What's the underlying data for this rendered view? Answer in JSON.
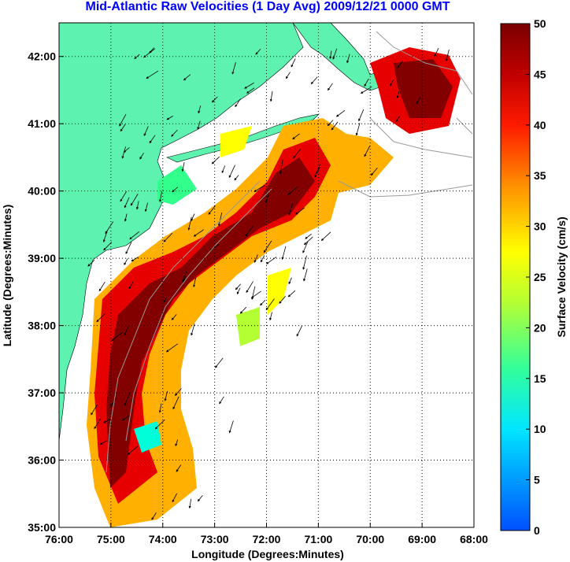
{
  "title": "Mid-Atlantic Raw Velocities (1 Day Avg) 2009/12/21 0000 GMT",
  "map": {
    "xlabel": "Longitude (Degrees:Minutes)",
    "ylabel": "Latitude (Degrees:Minutes)",
    "lon_range": [
      -76,
      -68
    ],
    "lat_range": [
      35,
      42.5
    ],
    "x_ticks": [
      {
        "value": -76,
        "label": "76:00"
      },
      {
        "value": -75,
        "label": "75:00"
      },
      {
        "value": -74,
        "label": "74:00"
      },
      {
        "value": -73,
        "label": "73:00"
      },
      {
        "value": -72,
        "label": "72:00"
      },
      {
        "value": -71,
        "label": "71:00"
      },
      {
        "value": -70,
        "label": "70:00"
      },
      {
        "value": -69,
        "label": "69:00"
      },
      {
        "value": -68,
        "label": "68:00"
      }
    ],
    "y_ticks": [
      {
        "value": 35,
        "label": "35:00"
      },
      {
        "value": 36,
        "label": "36:00"
      },
      {
        "value": 37,
        "label": "37:00"
      },
      {
        "value": 38,
        "label": "38:00"
      },
      {
        "value": 39,
        "label": "39:00"
      },
      {
        "value": 40,
        "label": "40:00"
      },
      {
        "value": 41,
        "label": "41:00"
      },
      {
        "value": 42,
        "label": "42:00"
      }
    ],
    "grid": "dotted",
    "land_color": "#5ef2b0",
    "coast_color": "#8c8c8c",
    "arrow_color": "#000000"
  },
  "colorbar": {
    "label": "Surface Velocity (cm/s)",
    "min": 0,
    "max": 50,
    "ticks": [
      {
        "value": 0,
        "label": "0"
      },
      {
        "value": 5,
        "label": "5"
      },
      {
        "value": 10,
        "label": "10"
      },
      {
        "value": 15,
        "label": "15"
      },
      {
        "value": 20,
        "label": "20"
      },
      {
        "value": 25,
        "label": "25"
      },
      {
        "value": 30,
        "label": "30"
      },
      {
        "value": 35,
        "label": "35"
      },
      {
        "value": 40,
        "label": "40"
      },
      {
        "value": 45,
        "label": "45"
      },
      {
        "value": 50,
        "label": "50"
      }
    ],
    "colors": [
      "#0050ff",
      "#00c8ff",
      "#00ffd8",
      "#33ff8c",
      "#b4ff33",
      "#ffff00",
      "#ffb000",
      "#ff5000",
      "#e60000",
      "#820000"
    ]
  }
}
